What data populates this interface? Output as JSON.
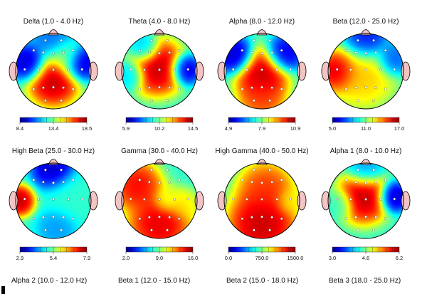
{
  "chart_data": [
    {
      "type": "heatmap",
      "title": "Delta (1.0 - 4.0 Hz)",
      "ticks": [
        "8.4",
        "13.4",
        "18.5"
      ],
      "scale": [
        8.4,
        18.5
      ],
      "hotspots": [
        {
          "x": 0.5,
          "y": 0.62,
          "v": 18.5,
          "s": 0.17
        },
        {
          "x": 0.18,
          "y": 0.4,
          "v": 8.5,
          "s": 0.12
        },
        {
          "x": 0.84,
          "y": 0.4,
          "v": 8.5,
          "s": 0.12
        },
        {
          "x": 0.5,
          "y": 0.1,
          "v": 10.5,
          "s": 0.14
        },
        {
          "x": 0.65,
          "y": 0.3,
          "v": 14.0,
          "s": 0.12
        }
      ]
    },
    {
      "type": "heatmap",
      "title": "Theta (4.0 - 8.0 Hz)",
      "ticks": [
        "5.9",
        "10.2",
        "14.5"
      ],
      "scale": [
        5.9,
        14.5
      ],
      "hotspots": [
        {
          "x": 0.47,
          "y": 0.45,
          "v": 14.5,
          "s": 0.18
        },
        {
          "x": 0.84,
          "y": 0.48,
          "v": 6.0,
          "s": 0.1
        },
        {
          "x": 0.12,
          "y": 0.55,
          "v": 8.5,
          "s": 0.1
        },
        {
          "x": 0.3,
          "y": 0.2,
          "v": 8.0,
          "s": 0.1
        }
      ]
    },
    {
      "type": "heatmap",
      "title": "Alpha (8.0 - 12.0 Hz)",
      "ticks": [
        "4.9",
        "7.9",
        "10.9"
      ],
      "scale": [
        4.9,
        10.9
      ],
      "hotspots": [
        {
          "x": 0.5,
          "y": 0.55,
          "v": 10.9,
          "s": 0.17
        },
        {
          "x": 0.5,
          "y": 0.85,
          "v": 10.0,
          "s": 0.15
        },
        {
          "x": 0.15,
          "y": 0.3,
          "v": 5.0,
          "s": 0.12
        },
        {
          "x": 0.8,
          "y": 0.28,
          "v": 5.2,
          "s": 0.12
        }
      ]
    },
    {
      "type": "heatmap",
      "title": "Beta (12.0 - 25.0 Hz)",
      "ticks": [
        "5.0",
        "11.0",
        "17.0"
      ],
      "scale": [
        5.0,
        17.0
      ],
      "hotspots": [
        {
          "x": 0.12,
          "y": 0.5,
          "v": 17.0,
          "s": 0.13
        },
        {
          "x": 0.45,
          "y": 0.55,
          "v": 13.5,
          "s": 0.22
        },
        {
          "x": 0.5,
          "y": 0.1,
          "v": 6.0,
          "s": 0.14
        },
        {
          "x": 0.85,
          "y": 0.35,
          "v": 7.0,
          "s": 0.11
        }
      ]
    },
    {
      "type": "heatmap",
      "title": "High Beta (25.0 - 30.0 Hz)",
      "ticks": [
        "2.9",
        "5.4",
        "7.9"
      ],
      "scale": [
        2.9,
        7.9
      ],
      "hotspots": [
        {
          "x": 0.05,
          "y": 0.5,
          "v": 7.9,
          "s": 0.1
        },
        {
          "x": 0.5,
          "y": 0.08,
          "v": 3.0,
          "s": 0.14
        },
        {
          "x": 0.75,
          "y": 0.45,
          "v": 5.0,
          "s": 0.18
        },
        {
          "x": 0.55,
          "y": 0.85,
          "v": 4.2,
          "s": 0.13
        }
      ]
    },
    {
      "type": "heatmap",
      "title": "Gamma (30.0 - 40.0 Hz)",
      "ticks": [
        "2.0",
        "9.0",
        "16.0"
      ],
      "scale": [
        2.0,
        16.0
      ],
      "hotspots": [
        {
          "x": 0.2,
          "y": 0.3,
          "v": 15.0,
          "s": 0.16
        },
        {
          "x": 0.5,
          "y": 0.8,
          "v": 15.5,
          "s": 0.2
        },
        {
          "x": 0.6,
          "y": 0.5,
          "v": 10.0,
          "s": 0.09
        },
        {
          "x": 0.82,
          "y": 0.55,
          "v": 11.0,
          "s": 0.1
        }
      ]
    },
    {
      "type": "heatmap",
      "title": "High Gamma (40.0 - 50.0 Hz)",
      "ticks": [
        "0.0",
        "750.0",
        "1500.0"
      ],
      "scale": [
        0.0,
        1500.0
      ],
      "hotspots": [
        {
          "x": 0.5,
          "y": 0.8,
          "v": 1500,
          "s": 0.22
        },
        {
          "x": 0.55,
          "y": 0.35,
          "v": 1300,
          "s": 0.18
        },
        {
          "x": 0.86,
          "y": 0.5,
          "v": 950,
          "s": 0.09
        }
      ]
    },
    {
      "type": "heatmap",
      "title": "Alpha 1 (8.0 - 10.0 Hz)",
      "ticks": [
        "3.0",
        "4.6",
        "6.2"
      ],
      "scale": [
        3.0,
        6.2
      ],
      "hotspots": [
        {
          "x": 0.47,
          "y": 0.45,
          "v": 6.2,
          "s": 0.17
        },
        {
          "x": 0.86,
          "y": 0.45,
          "v": 3.0,
          "s": 0.1
        },
        {
          "x": 0.5,
          "y": 0.08,
          "v": 3.8,
          "s": 0.12
        },
        {
          "x": 0.15,
          "y": 0.55,
          "v": 4.3,
          "s": 0.1
        }
      ]
    }
  ],
  "bottom_titles": [
    "Alpha 2 (10.0 - 12.0 Hz)",
    "Beta 1 (12.0 - 15.0 Hz)",
    "Beta 2 (15.0 - 18.0 Hz)",
    "Beta 3 (18.0 - 25.0 Hz)"
  ],
  "colors": {
    "head_outline": "#000000",
    "ear_nose": "#f3c4c4"
  }
}
